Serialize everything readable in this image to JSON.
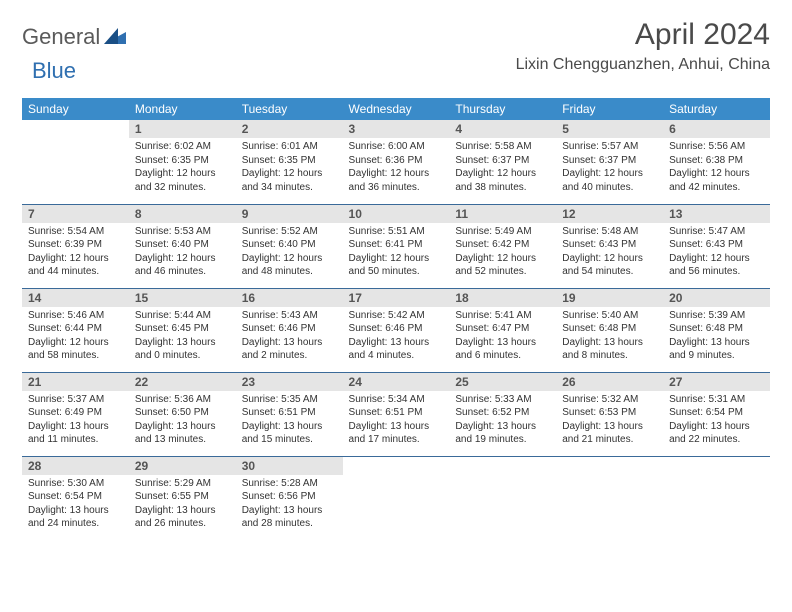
{
  "logo": {
    "general": "General",
    "blue": "Blue"
  },
  "title": "April 2024",
  "location": "Lixin Chengguanzhen, Anhui, China",
  "colors": {
    "header_bg": "#3a8bc9",
    "header_text": "#ffffff",
    "daynum_bg": "#e5e5e5",
    "row_border": "#3a6a99",
    "logo_general": "#5a5a5a",
    "logo_blue": "#2f6fb0"
  },
  "weekdays": [
    "Sunday",
    "Monday",
    "Tuesday",
    "Wednesday",
    "Thursday",
    "Friday",
    "Saturday"
  ],
  "weeks": [
    [
      {
        "empty": true
      },
      {
        "n": "1",
        "sunrise": "Sunrise: 6:02 AM",
        "sunset": "Sunset: 6:35 PM",
        "day1": "Daylight: 12 hours",
        "day2": "and 32 minutes."
      },
      {
        "n": "2",
        "sunrise": "Sunrise: 6:01 AM",
        "sunset": "Sunset: 6:35 PM",
        "day1": "Daylight: 12 hours",
        "day2": "and 34 minutes."
      },
      {
        "n": "3",
        "sunrise": "Sunrise: 6:00 AM",
        "sunset": "Sunset: 6:36 PM",
        "day1": "Daylight: 12 hours",
        "day2": "and 36 minutes."
      },
      {
        "n": "4",
        "sunrise": "Sunrise: 5:58 AM",
        "sunset": "Sunset: 6:37 PM",
        "day1": "Daylight: 12 hours",
        "day2": "and 38 minutes."
      },
      {
        "n": "5",
        "sunrise": "Sunrise: 5:57 AM",
        "sunset": "Sunset: 6:37 PM",
        "day1": "Daylight: 12 hours",
        "day2": "and 40 minutes."
      },
      {
        "n": "6",
        "sunrise": "Sunrise: 5:56 AM",
        "sunset": "Sunset: 6:38 PM",
        "day1": "Daylight: 12 hours",
        "day2": "and 42 minutes."
      }
    ],
    [
      {
        "n": "7",
        "sunrise": "Sunrise: 5:54 AM",
        "sunset": "Sunset: 6:39 PM",
        "day1": "Daylight: 12 hours",
        "day2": "and 44 minutes."
      },
      {
        "n": "8",
        "sunrise": "Sunrise: 5:53 AM",
        "sunset": "Sunset: 6:40 PM",
        "day1": "Daylight: 12 hours",
        "day2": "and 46 minutes."
      },
      {
        "n": "9",
        "sunrise": "Sunrise: 5:52 AM",
        "sunset": "Sunset: 6:40 PM",
        "day1": "Daylight: 12 hours",
        "day2": "and 48 minutes."
      },
      {
        "n": "10",
        "sunrise": "Sunrise: 5:51 AM",
        "sunset": "Sunset: 6:41 PM",
        "day1": "Daylight: 12 hours",
        "day2": "and 50 minutes."
      },
      {
        "n": "11",
        "sunrise": "Sunrise: 5:49 AM",
        "sunset": "Sunset: 6:42 PM",
        "day1": "Daylight: 12 hours",
        "day2": "and 52 minutes."
      },
      {
        "n": "12",
        "sunrise": "Sunrise: 5:48 AM",
        "sunset": "Sunset: 6:43 PM",
        "day1": "Daylight: 12 hours",
        "day2": "and 54 minutes."
      },
      {
        "n": "13",
        "sunrise": "Sunrise: 5:47 AM",
        "sunset": "Sunset: 6:43 PM",
        "day1": "Daylight: 12 hours",
        "day2": "and 56 minutes."
      }
    ],
    [
      {
        "n": "14",
        "sunrise": "Sunrise: 5:46 AM",
        "sunset": "Sunset: 6:44 PM",
        "day1": "Daylight: 12 hours",
        "day2": "and 58 minutes."
      },
      {
        "n": "15",
        "sunrise": "Sunrise: 5:44 AM",
        "sunset": "Sunset: 6:45 PM",
        "day1": "Daylight: 13 hours",
        "day2": "and 0 minutes."
      },
      {
        "n": "16",
        "sunrise": "Sunrise: 5:43 AM",
        "sunset": "Sunset: 6:46 PM",
        "day1": "Daylight: 13 hours",
        "day2": "and 2 minutes."
      },
      {
        "n": "17",
        "sunrise": "Sunrise: 5:42 AM",
        "sunset": "Sunset: 6:46 PM",
        "day1": "Daylight: 13 hours",
        "day2": "and 4 minutes."
      },
      {
        "n": "18",
        "sunrise": "Sunrise: 5:41 AM",
        "sunset": "Sunset: 6:47 PM",
        "day1": "Daylight: 13 hours",
        "day2": "and 6 minutes."
      },
      {
        "n": "19",
        "sunrise": "Sunrise: 5:40 AM",
        "sunset": "Sunset: 6:48 PM",
        "day1": "Daylight: 13 hours",
        "day2": "and 8 minutes."
      },
      {
        "n": "20",
        "sunrise": "Sunrise: 5:39 AM",
        "sunset": "Sunset: 6:48 PM",
        "day1": "Daylight: 13 hours",
        "day2": "and 9 minutes."
      }
    ],
    [
      {
        "n": "21",
        "sunrise": "Sunrise: 5:37 AM",
        "sunset": "Sunset: 6:49 PM",
        "day1": "Daylight: 13 hours",
        "day2": "and 11 minutes."
      },
      {
        "n": "22",
        "sunrise": "Sunrise: 5:36 AM",
        "sunset": "Sunset: 6:50 PM",
        "day1": "Daylight: 13 hours",
        "day2": "and 13 minutes."
      },
      {
        "n": "23",
        "sunrise": "Sunrise: 5:35 AM",
        "sunset": "Sunset: 6:51 PM",
        "day1": "Daylight: 13 hours",
        "day2": "and 15 minutes."
      },
      {
        "n": "24",
        "sunrise": "Sunrise: 5:34 AM",
        "sunset": "Sunset: 6:51 PM",
        "day1": "Daylight: 13 hours",
        "day2": "and 17 minutes."
      },
      {
        "n": "25",
        "sunrise": "Sunrise: 5:33 AM",
        "sunset": "Sunset: 6:52 PM",
        "day1": "Daylight: 13 hours",
        "day2": "and 19 minutes."
      },
      {
        "n": "26",
        "sunrise": "Sunrise: 5:32 AM",
        "sunset": "Sunset: 6:53 PM",
        "day1": "Daylight: 13 hours",
        "day2": "and 21 minutes."
      },
      {
        "n": "27",
        "sunrise": "Sunrise: 5:31 AM",
        "sunset": "Sunset: 6:54 PM",
        "day1": "Daylight: 13 hours",
        "day2": "and 22 minutes."
      }
    ],
    [
      {
        "n": "28",
        "sunrise": "Sunrise: 5:30 AM",
        "sunset": "Sunset: 6:54 PM",
        "day1": "Daylight: 13 hours",
        "day2": "and 24 minutes."
      },
      {
        "n": "29",
        "sunrise": "Sunrise: 5:29 AM",
        "sunset": "Sunset: 6:55 PM",
        "day1": "Daylight: 13 hours",
        "day2": "and 26 minutes."
      },
      {
        "n": "30",
        "sunrise": "Sunrise: 5:28 AM",
        "sunset": "Sunset: 6:56 PM",
        "day1": "Daylight: 13 hours",
        "day2": "and 28 minutes."
      },
      {
        "empty": true
      },
      {
        "empty": true
      },
      {
        "empty": true
      },
      {
        "empty": true
      }
    ]
  ]
}
